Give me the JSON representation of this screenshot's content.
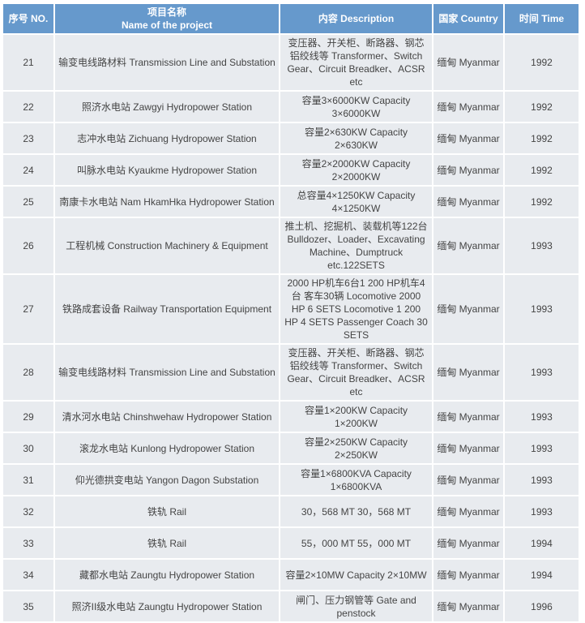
{
  "header": {
    "no": "序号 NO.",
    "name_cn": "项目名称",
    "name_en": "Name of the project",
    "description": "内容 Description",
    "country": "国家 Country",
    "time": "时间 Time"
  },
  "rows": [
    {
      "no": "21",
      "name": "输变电线路材料 Transmission Line and Substation",
      "description": "变压器、开关柜、断路器、钢芯铝绞线等 Transformer、Switch Gear、Circuit Breadker、ACSR etc",
      "country": "缅甸 Myanmar",
      "time": "1992"
    },
    {
      "no": "22",
      "name": "照济水电站 Zawgyi Hydropower Station",
      "description": "容量3×6000KW Capacity 3×6000KW",
      "country": "缅甸 Myanmar",
      "time": "1992"
    },
    {
      "no": "23",
      "name": "志冲水电站 Zichuang Hydropower Station",
      "description": "容量2×630KW Capacity 2×630KW",
      "country": "缅甸 Myanmar",
      "time": "1992"
    },
    {
      "no": "24",
      "name": "叫脉水电站 Kyaukme Hydropower Station",
      "description": "容量2×2000KW Capacity 2×2000KW",
      "country": "缅甸 Myanmar",
      "time": "1992"
    },
    {
      "no": "25",
      "name": "南康卡水电站 Nam HkamHka Hydropower Station",
      "description": "总容量4×1250KW Capacity 4×1250KW",
      "country": "缅甸 Myanmar",
      "time": "1992"
    },
    {
      "no": "26",
      "name": "工程机械 Construction Machinery & Equipment",
      "description": "推土机、挖掘机、装载机等122台 Bulldozer、Loader、Excavating Machine、Dumptruck etc.122SETS",
      "country": "缅甸 Myanmar",
      "time": "1993"
    },
    {
      "no": "27",
      "name": "铁路成套设备 Railway Transportation Equipment",
      "description": "2000 HP机车6台1 200 HP机车4台 客车30辆 Locomotive 2000 HP 6 SETS Locomotive 1 200 HP 4 SETS Passenger Coach 30 SETS",
      "country": "缅甸 Myanmar",
      "time": "1993"
    },
    {
      "no": "28",
      "name": "输变电线路材料 Transmission Line and Substation",
      "description": "变压器、开关柜、断路器、钢芯铝绞线等 Transformer、Switch Gear、Circuit Breadker、ACSR etc",
      "country": "缅甸 Myanmar",
      "time": "1993"
    },
    {
      "no": "29",
      "name": "清水河水电站 Chinshwehaw Hydropower Station",
      "description": "容量1×200KW Capacity 1×200KW",
      "country": "缅甸 Myanmar",
      "time": "1993"
    },
    {
      "no": "30",
      "name": "滚龙水电站 Kunlong Hydropower Station",
      "description": "容量2×250KW Capacity 2×250KW",
      "country": "缅甸 Myanmar",
      "time": "1993"
    },
    {
      "no": "31",
      "name": "仰光德拱变电站 Yangon Dagon Substation",
      "description": "容量1×6800KVA Capacity 1×6800KVA",
      "country": "缅甸 Myanmar",
      "time": "1993"
    },
    {
      "no": "32",
      "name": "铁轨 Rail",
      "description": "30，568 MT 30，568 MT",
      "country": "缅甸 Myanmar",
      "time": "1993"
    },
    {
      "no": "33",
      "name": "铁轨 Rail",
      "description": "55，000 MT 55，000 MT",
      "country": "缅甸 Myanmar",
      "time": "1994"
    },
    {
      "no": "34",
      "name": "藏都水电站 Zaungtu Hydropower Station",
      "description": "容量2×10MW Capacity 2×10MW",
      "country": "缅甸 Myanmar",
      "time": "1994"
    },
    {
      "no": "35",
      "name": "照济II级水电站 Zaungtu Hydropower Station",
      "description": "闸门、压力钢管等 Gate and penstock",
      "country": "缅甸 Myanmar",
      "time": "1996"
    }
  ]
}
